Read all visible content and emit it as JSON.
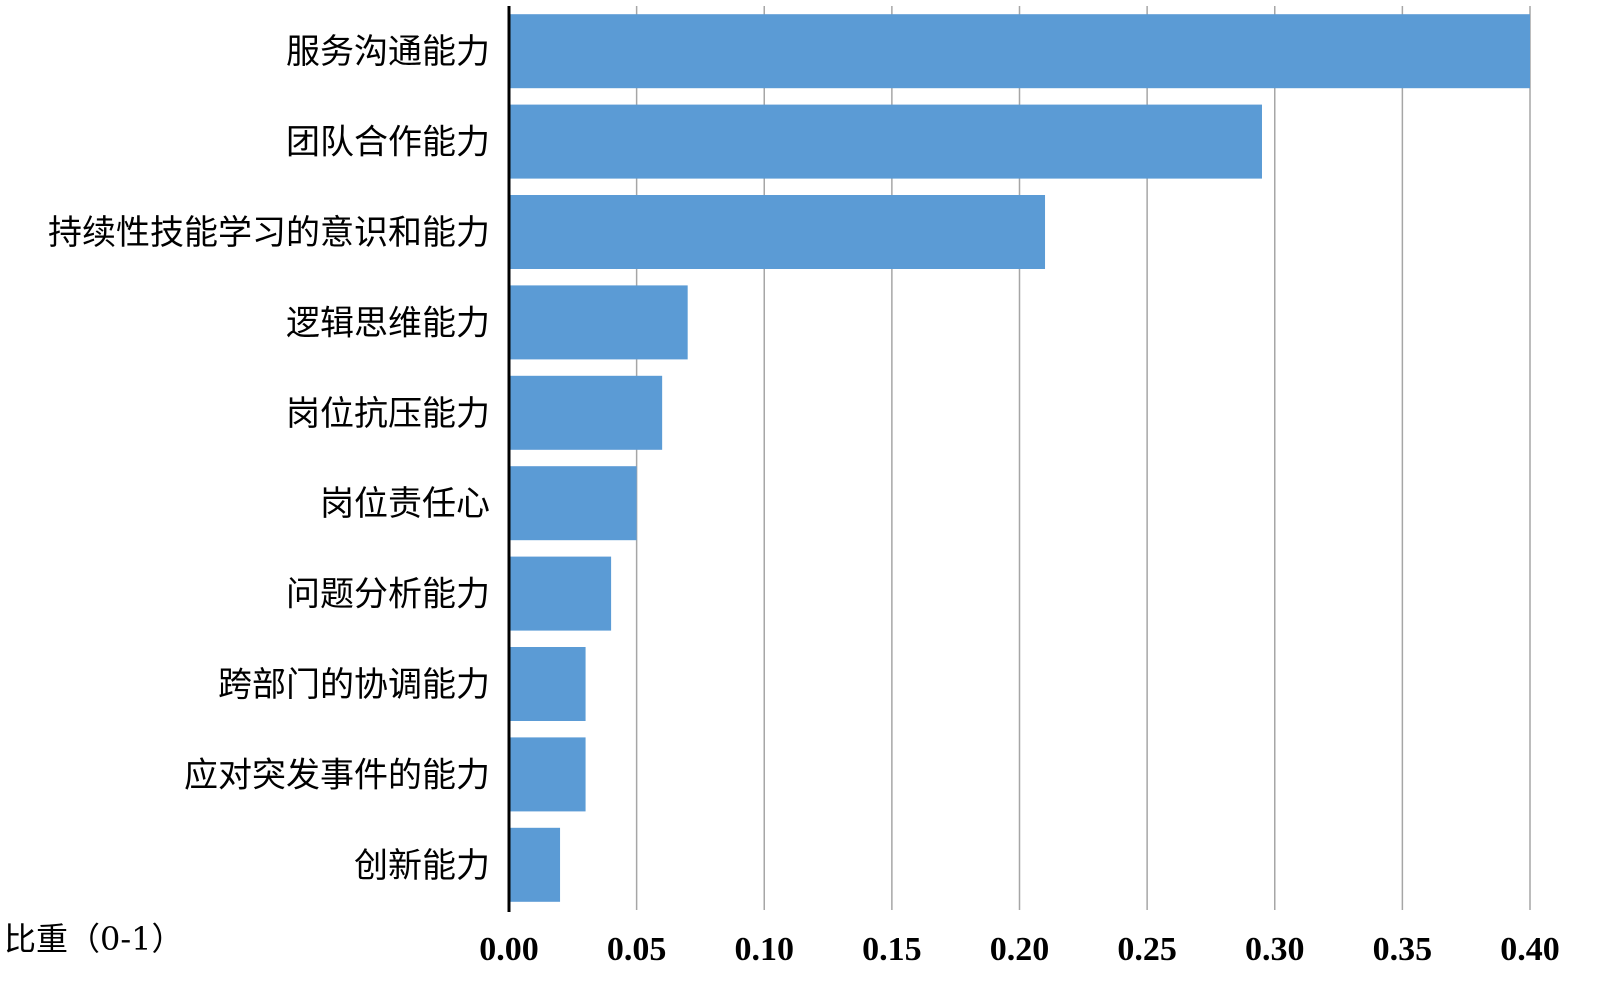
{
  "chart_data": {
    "type": "bar",
    "orientation": "horizontal",
    "categories": [
      "服务沟通能力",
      "团队合作能力",
      "持续性技能学习的意识和能力",
      "逻辑思维能力",
      "岗位抗压能力",
      "岗位责任心",
      "问题分析能力",
      "跨部门的协调能力",
      "应对突发事件的能力",
      "创新能力"
    ],
    "values": [
      0.4,
      0.295,
      0.21,
      0.07,
      0.06,
      0.05,
      0.04,
      0.03,
      0.03,
      0.02
    ],
    "xlabel": "比重（0-1）",
    "ylabel": "",
    "title": "",
    "xlim": [
      0,
      0.4
    ],
    "xticks": [
      "0.00",
      "0.05",
      "0.10",
      "0.15",
      "0.20",
      "0.25",
      "0.30",
      "0.35",
      "0.40"
    ],
    "grid": "vertical",
    "legend": "none",
    "bar_color": "#5B9BD5",
    "grid_color": "#A6A6A6"
  }
}
